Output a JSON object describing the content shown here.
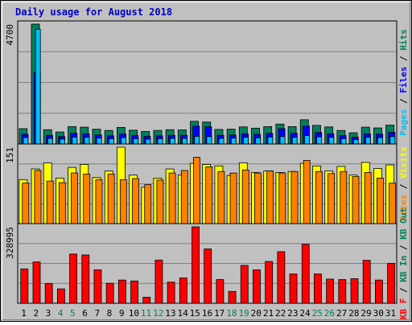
{
  "chart_data": {
    "type": "bar",
    "title": "Daily usage for August 2018",
    "categories": [
      "1",
      "2",
      "3",
      "4",
      "5",
      "6",
      "7",
      "8",
      "9",
      "10",
      "11",
      "12",
      "13",
      "14",
      "15",
      "16",
      "17",
      "18",
      "19",
      "20",
      "21",
      "22",
      "23",
      "24",
      "25",
      "26",
      "27",
      "28",
      "29",
      "30",
      "31"
    ],
    "weekend_days": [
      "4",
      "5",
      "11",
      "12",
      "18",
      "19",
      "25",
      "26"
    ],
    "grid": true,
    "panels": [
      {
        "ymax_label": "4700",
        "ymax": 4700,
        "legend": [
          {
            "text": "Pages",
            "color": "#00c0ff"
          },
          {
            "text": " / ",
            "color": "#000000"
          },
          {
            "text": "Files",
            "color": "#0000ff"
          },
          {
            "text": " / ",
            "color": "#000000"
          },
          {
            "text": "Hits",
            "color": "#00805c"
          }
        ],
        "series": [
          {
            "name": "Hits",
            "color": "#00805c",
            "values": [
              600,
              4700,
              560,
              470,
              680,
              660,
              580,
              530,
              650,
              540,
              490,
              530,
              560,
              550,
              890,
              860,
              570,
              580,
              670,
              620,
              680,
              780,
              680,
              950,
              730,
              670,
              530,
              440,
              660,
              630,
              740
            ]
          },
          {
            "name": "Files",
            "color": "#0000ff",
            "values": [
              380,
              2800,
              340,
              290,
              420,
              400,
              350,
              320,
              390,
              330,
              300,
              320,
              340,
              340,
              700,
              680,
              340,
              350,
              400,
              380,
              420,
              600,
              420,
              700,
              450,
              400,
              330,
              270,
              400,
              390,
              460
            ]
          },
          {
            "name": "Pages",
            "color": "#00c0ff",
            "values": [
              250,
              4500,
              220,
              190,
              270,
              260,
              230,
              210,
              250,
              210,
              190,
              210,
              220,
              220,
              300,
              290,
              220,
              230,
              260,
              240,
              270,
              290,
              260,
              330,
              280,
              260,
              210,
              170,
              260,
              250,
              290
            ]
          }
        ]
      },
      {
        "ymax_label": "151",
        "ymax": 151,
        "legend": [
          {
            "text": "Sites",
            "color": "#ff8000"
          },
          {
            "text": " / ",
            "color": "#000000"
          },
          {
            "text": "Visits",
            "color": "#ffff00"
          }
        ],
        "series": [
          {
            "name": "Visits",
            "color": "#ffff00",
            "values": [
              87,
              108,
              120,
              90,
              111,
              117,
              91,
              104,
              151,
              96,
              72,
              90,
              108,
              96,
              119,
              117,
              114,
              95,
              120,
              101,
              104,
              101,
              103,
              119,
              114,
              104,
              113,
              96,
              121,
              109,
              116
            ]
          },
          {
            "name": "Sites",
            "color": "#ff8000",
            "values": [
              80,
              105,
              84,
              81,
              100,
              98,
              87,
              98,
              87,
              89,
              77,
              86,
              100,
              105,
              131,
              112,
              103,
              100,
              106,
              100,
              104,
              100,
              103,
              125,
              103,
              99,
              103,
              93,
              101,
              90,
              80
            ]
          }
        ]
      },
      {
        "ymax_label": "328995",
        "ymax": 328995,
        "legend": [
          {
            "text": "KB F",
            "color": "#ff0000"
          },
          {
            "text": " / ",
            "color": "#000000"
          },
          {
            "text": "KB In",
            "color": "#00805c"
          },
          {
            "text": " / ",
            "color": "#000000"
          },
          {
            "text": "KB Out",
            "color": "#00805c"
          }
        ],
        "series": [
          {
            "name": "KB F",
            "color": "#ff0000",
            "values": [
              148000,
              178000,
              85000,
              62000,
              212000,
              208000,
              144000,
              86000,
              100000,
              96000,
              26000,
              186000,
              91000,
              109000,
              328995,
              234000,
              102000,
              51000,
              163000,
              144000,
              180000,
              222000,
              126000,
              254000,
              126000,
              104000,
              102000,
              106000,
              185000,
              100000,
              172000
            ]
          }
        ]
      }
    ]
  }
}
